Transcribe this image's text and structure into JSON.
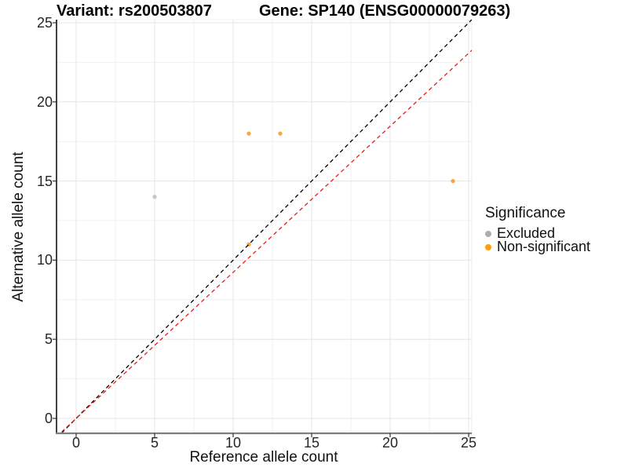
{
  "titles": {
    "variant": "Variant: rs200503807",
    "gene": "Gene: SP140 (ENSG00000079263)"
  },
  "chart_data": {
    "type": "scatter",
    "title_left": "Variant: rs200503807",
    "title_right": "Gene: SP140 (ENSG00000079263)",
    "xlabel": "Reference allele count",
    "ylabel": "Alternative allele count",
    "x_ticks": [
      0,
      5,
      10,
      15,
      20,
      25
    ],
    "y_ticks": [
      0,
      5,
      10,
      15,
      20,
      25
    ],
    "xlim": [
      -1.25,
      25.2
    ],
    "ylim": [
      -0.95,
      25.2
    ],
    "grid": "major+minor",
    "legend": {
      "title": "Significance",
      "position": "right",
      "items": [
        {
          "label": "Excluded",
          "color": "#ADADAD"
        },
        {
          "label": "Non-significant",
          "color": "#FF9D0A"
        }
      ]
    },
    "series": [
      {
        "name": "Excluded",
        "color": "#C6C6C6",
        "points": [
          [
            5,
            14
          ]
        ]
      },
      {
        "name": "Non-significant",
        "color": "#F9A63F",
        "points": [
          [
            11,
            11
          ],
          [
            11,
            18
          ],
          [
            13,
            18
          ],
          [
            24,
            15
          ]
        ]
      }
    ],
    "ref_lines": [
      {
        "name": "identity",
        "slope": 1.0,
        "intercept": 0,
        "color": "#000000",
        "dash": "5,4"
      },
      {
        "name": "expected-ratio",
        "slope": 0.923,
        "intercept": 0,
        "color": "#F01818",
        "dash": "5,4"
      }
    ],
    "colors": {
      "major_grid": "#E4E4E4",
      "minor_grid": "#F1F1F1",
      "axis_left": "#000000",
      "axis_bottom": "#7F7F7F",
      "tick_mark": "#333333"
    }
  }
}
